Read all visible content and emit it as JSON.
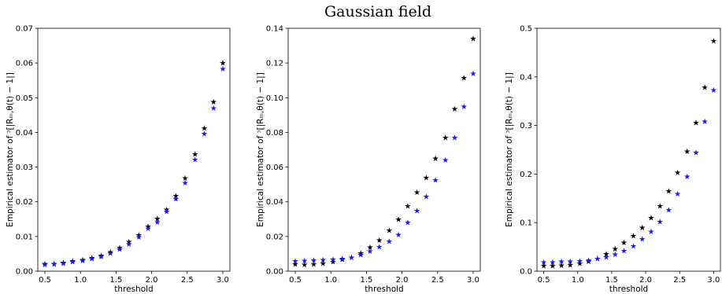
{
  "figure": {
    "title": "Gaussian field"
  },
  "chart_data": [
    {
      "type": "scatter",
      "xlabel": "threshold",
      "ylabel": "Empirical estimator of ᵓ[|Rₘ,θ(t) − 1|]",
      "xlim": [
        0.4,
        3.1
      ],
      "ylim": [
        0,
        0.07
      ],
      "xticks": [
        "0.5",
        "1.0",
        "1.5",
        "2.0",
        "2.5",
        "3.0"
      ],
      "yticks": [
        "0.00",
        "0.01",
        "0.02",
        "0.03",
        "0.04",
        "0.05",
        "0.06",
        "0.07"
      ],
      "grid": false,
      "x": [
        0.5,
        0.63,
        0.76,
        0.89,
        1.03,
        1.16,
        1.29,
        1.42,
        1.55,
        1.68,
        1.82,
        1.95,
        2.08,
        2.21,
        2.34,
        2.47,
        2.61,
        2.74,
        2.87,
        3.0
      ],
      "series": [
        {
          "color": "#000000",
          "values": [
            0.0021,
            0.0022,
            0.0025,
            0.0029,
            0.0033,
            0.0038,
            0.0045,
            0.0055,
            0.0068,
            0.0085,
            0.0104,
            0.0129,
            0.0152,
            0.0178,
            0.0218,
            0.0268,
            0.0338,
            0.0412,
            0.0488,
            0.06
          ]
        },
        {
          "color": "#1a1ae6",
          "values": [
            0.0019,
            0.002,
            0.0023,
            0.0027,
            0.0031,
            0.0036,
            0.0042,
            0.0052,
            0.0063,
            0.0078,
            0.0099,
            0.0123,
            0.0142,
            0.0172,
            0.0208,
            0.0255,
            0.0322,
            0.0396,
            0.047,
            0.0583
          ]
        }
      ]
    },
    {
      "type": "scatter",
      "xlabel": "threshold",
      "ylabel": "Empirical estimator of ᵓ[|Rₘ,θ(t) − 1|]",
      "xlim": [
        0.4,
        3.1
      ],
      "ylim": [
        0,
        0.14
      ],
      "xticks": [
        "0.5",
        "1.0",
        "1.5",
        "2.0",
        "2.5",
        "3.0"
      ],
      "yticks": [
        "0.00",
        "0.02",
        "0.04",
        "0.06",
        "0.08",
        "0.10",
        "0.12",
        "0.14"
      ],
      "grid": false,
      "x": [
        0.5,
        0.63,
        0.76,
        0.89,
        1.03,
        1.16,
        1.29,
        1.42,
        1.55,
        1.68,
        1.82,
        1.95,
        2.08,
        2.21,
        2.34,
        2.47,
        2.61,
        2.74,
        2.87,
        3.0
      ],
      "series": [
        {
          "color": "#000000",
          "values": [
            0.004,
            0.0038,
            0.004,
            0.0045,
            0.0055,
            0.0067,
            0.008,
            0.0105,
            0.0138,
            0.018,
            0.0235,
            0.03,
            0.0375,
            0.0455,
            0.054,
            0.065,
            0.077,
            0.0935,
            0.1115,
            0.134
          ]
        },
        {
          "color": "#1a1ae6",
          "values": [
            0.0058,
            0.0062,
            0.0064,
            0.0066,
            0.0068,
            0.0072,
            0.008,
            0.0095,
            0.0115,
            0.014,
            0.0172,
            0.021,
            0.028,
            0.035,
            0.043,
            0.0525,
            0.064,
            0.077,
            0.095,
            0.114
          ]
        }
      ]
    },
    {
      "type": "scatter",
      "xlabel": "threshold",
      "ylabel": "Empirical estimator of ᵓ[|Rₘ,θ(t) − 1|]",
      "xlim": [
        0.4,
        3.1
      ],
      "ylim": [
        0,
        0.5
      ],
      "xticks": [
        "0.5",
        "1.0",
        "1.5",
        "2.0",
        "2.5",
        "3.0"
      ],
      "yticks": [
        "0.0",
        "0.1",
        "0.2",
        "0.3",
        "0.4",
        "0.5"
      ],
      "grid": false,
      "x": [
        0.5,
        0.63,
        0.76,
        0.89,
        1.03,
        1.16,
        1.29,
        1.42,
        1.55,
        1.68,
        1.82,
        1.95,
        2.08,
        2.21,
        2.34,
        2.47,
        2.61,
        2.74,
        2.87,
        3.0
      ],
      "series": [
        {
          "color": "#000000",
          "values": [
            0.011,
            0.011,
            0.012,
            0.013,
            0.016,
            0.02,
            0.026,
            0.036,
            0.046,
            0.059,
            0.073,
            0.09,
            0.11,
            0.134,
            0.165,
            0.203,
            0.247,
            0.306,
            0.379,
            0.474
          ]
        },
        {
          "color": "#1a1ae6",
          "values": [
            0.019,
            0.019,
            0.02,
            0.02,
            0.021,
            0.023,
            0.026,
            0.029,
            0.035,
            0.042,
            0.052,
            0.066,
            0.082,
            0.102,
            0.126,
            0.159,
            0.195,
            0.244,
            0.308,
            0.373
          ]
        }
      ]
    }
  ]
}
